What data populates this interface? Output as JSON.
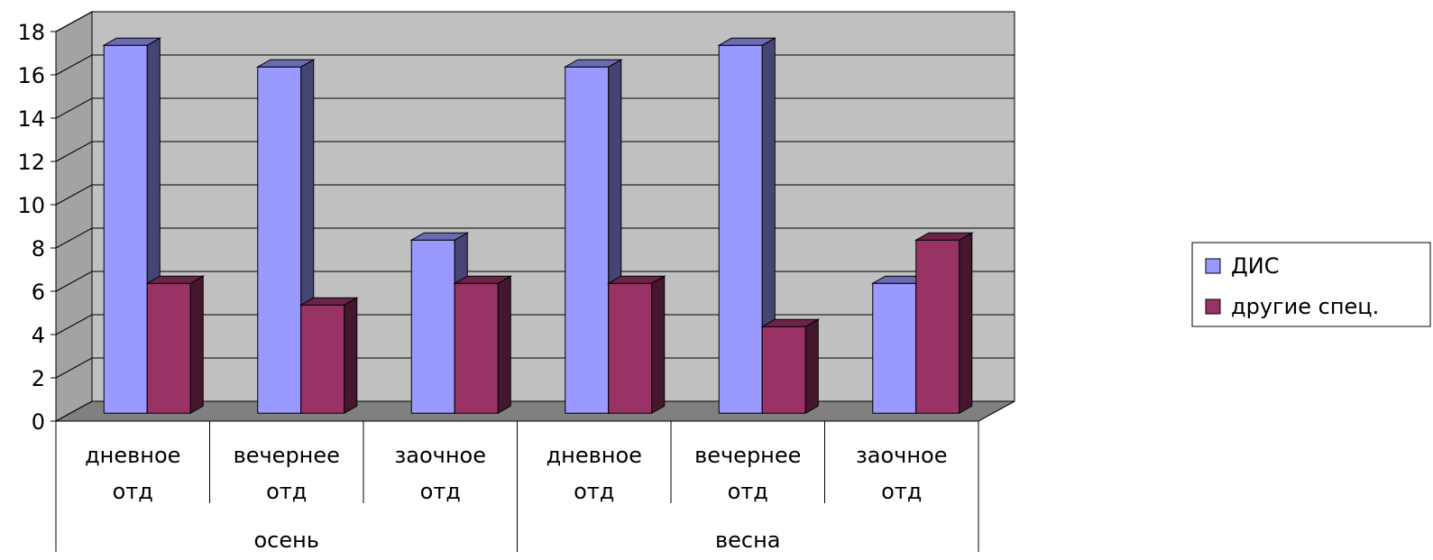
{
  "chart_data": {
    "type": "bar",
    "groups": [
      {
        "label": "осень",
        "categories": [
          [
            "дневное",
            "отд"
          ],
          [
            "вечернее",
            "отд"
          ],
          [
            "заочное",
            "отд"
          ]
        ]
      },
      {
        "label": "весна",
        "categories": [
          [
            "дневное",
            "отд"
          ],
          [
            "вечернее",
            "отд"
          ],
          [
            "заочное",
            "отд"
          ]
        ]
      }
    ],
    "series": [
      {
        "name": "ДИС",
        "values": [
          17,
          16,
          8,
          16,
          17,
          6
        ],
        "color": "#9999ff"
      },
      {
        "name": "другие спец.",
        "values": [
          6,
          5,
          6,
          6,
          4,
          8
        ],
        "color": "#993366"
      }
    ],
    "ylim": [
      0,
      18
    ],
    "yticks": [
      "0",
      "2",
      "4",
      "6",
      "8",
      "10",
      "12",
      "14",
      "16",
      "18"
    ],
    "grid": true,
    "legend_position": "right",
    "wall_color": "#c0c0c0",
    "floor_color": "#808080"
  }
}
